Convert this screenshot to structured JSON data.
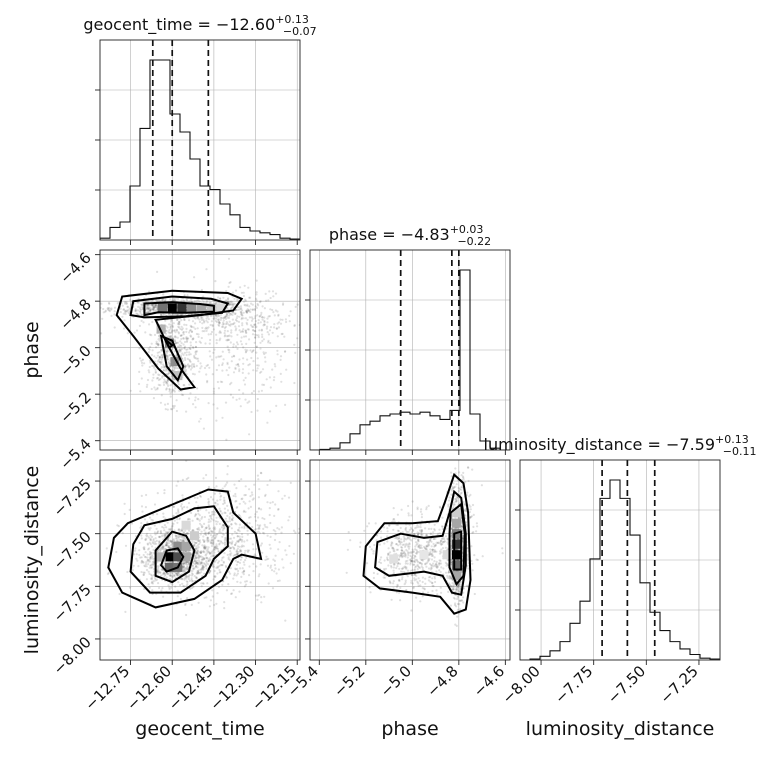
{
  "chart_data": {
    "type": "corner",
    "parameters": [
      {
        "name": "geocent_time",
        "title_text": "geocent_time = −12.60",
        "err_plus": "+0.13",
        "err_minus": "−0.07",
        "range": [
          -12.86,
          -12.14
        ],
        "ticks": [
          -12.75,
          -12.6,
          -12.45,
          -12.3,
          -12.15
        ],
        "tick_labels": [
          "−12.75",
          "−12.60",
          "−12.45",
          "−12.30",
          "−12.15"
        ],
        "quantiles": [
          -12.67,
          -12.6,
          -12.47
        ],
        "hist_edges_start": -12.86,
        "hist_bin_width": 0.036,
        "hist_values": [
          0.01,
          0.07,
          0.1,
          0.3,
          0.62,
          1.0,
          1.0,
          0.7,
          0.6,
          0.45,
          0.3,
          0.28,
          0.2,
          0.14,
          0.07,
          0.05,
          0.04,
          0.03,
          0.01,
          0.005
        ]
      },
      {
        "name": "phase",
        "title_text": "phase = −4.83",
        "err_plus": "+0.03",
        "err_minus": "−0.22",
        "range": [
          -5.44,
          -4.58
        ],
        "ticks": [
          -5.4,
          -5.2,
          -5.0,
          -4.8,
          -4.6
        ],
        "tick_labels": [
          "−5.4",
          "−5.2",
          "−5.0",
          "−4.8",
          "−4.6"
        ],
        "quantiles": [
          -5.05,
          -4.83,
          -4.8
        ],
        "hist_edges_start": -5.44,
        "hist_bin_width": 0.043,
        "hist_values": [
          0.0,
          0.003,
          0.01,
          0.04,
          0.09,
          0.14,
          0.16,
          0.19,
          0.2,
          0.21,
          0.2,
          0.21,
          0.19,
          0.17,
          0.22,
          1.0,
          0.2,
          0.05,
          0.01,
          0.0
        ]
      },
      {
        "name": "luminosity_distance",
        "title_text": "luminosity_distance = −7.59",
        "err_plus": "+0.13",
        "err_minus": "−0.11",
        "range": [
          -8.1,
          -7.15
        ],
        "ticks": [
          -8.0,
          -7.75,
          -7.5,
          -7.25
        ],
        "tick_labels": [
          "−8.00",
          "−7.75",
          "−7.50",
          "−7.25"
        ],
        "quantiles": [
          -7.71,
          -7.59,
          -7.46
        ],
        "hist_edges_start": -8.1,
        "hist_bin_width": 0.0475,
        "hist_values": [
          0.0,
          0.005,
          0.02,
          0.05,
          0.1,
          0.2,
          0.32,
          0.55,
          0.88,
          0.98,
          0.88,
          0.68,
          0.42,
          0.26,
          0.16,
          0.1,
          0.06,
          0.03,
          0.01,
          0.005
        ]
      }
    ],
    "pairs": [
      {
        "x_param": "geocent_time",
        "y_param": "phase",
        "blobs": [
          {
            "cx": -12.58,
            "cy": -4.83,
            "sx": 0.12,
            "sy": 0.018,
            "weight": 700
          },
          {
            "cx": -12.46,
            "cy": -4.86,
            "sx": 0.14,
            "sy": 0.045,
            "weight": 450
          },
          {
            "cx": -12.6,
            "cy": -5.05,
            "sx": 0.045,
            "sy": 0.09,
            "weight": 550
          },
          {
            "cx": -12.35,
            "cy": -4.99,
            "sx": 0.09,
            "sy": 0.15,
            "weight": 300
          }
        ],
        "density_cells": [
          {
            "x": -12.6,
            "y": -4.83,
            "level": 1.0
          },
          {
            "x": -12.565,
            "y": -4.83,
            "level": 0.8
          },
          {
            "x": -12.635,
            "y": -4.83,
            "level": 0.55
          },
          {
            "x": -12.53,
            "y": -4.83,
            "level": 0.45
          },
          {
            "x": -12.495,
            "y": -4.83,
            "level": 0.35
          },
          {
            "x": -12.46,
            "y": -4.83,
            "level": 0.25
          },
          {
            "x": -12.425,
            "y": -4.83,
            "level": 0.15
          },
          {
            "x": -12.61,
            "y": -4.98,
            "level": 0.5
          },
          {
            "x": -12.59,
            "y": -5.06,
            "level": 0.45
          },
          {
            "x": -12.58,
            "y": -5.12,
            "level": 0.25
          },
          {
            "x": -12.64,
            "y": -4.92,
            "level": 0.3
          }
        ],
        "contours": [
          [
            [
              -12.7,
              -4.86
            ],
            [
              -12.7,
              -4.81
            ],
            [
              -12.6,
              -4.805
            ],
            [
              -12.5,
              -4.812
            ],
            [
              -12.45,
              -4.82
            ],
            [
              -12.45,
              -4.845
            ],
            [
              -12.55,
              -4.85
            ],
            [
              -12.65,
              -4.848
            ],
            [
              -12.7,
              -4.86
            ]
          ],
          [
            [
              -12.75,
              -4.86
            ],
            [
              -12.74,
              -4.8
            ],
            [
              -12.6,
              -4.78
            ],
            [
              -12.46,
              -4.79
            ],
            [
              -12.4,
              -4.81
            ],
            [
              -12.42,
              -4.85
            ],
            [
              -12.55,
              -4.865
            ],
            [
              -12.7,
              -4.87
            ],
            [
              -12.75,
              -4.86
            ]
          ],
          [
            [
              -12.8,
              -4.86
            ],
            [
              -12.78,
              -4.78
            ],
            [
              -12.6,
              -4.755
            ],
            [
              -12.4,
              -4.765
            ],
            [
              -12.35,
              -4.79
            ],
            [
              -12.38,
              -4.84
            ],
            [
              -12.5,
              -4.86
            ],
            [
              -12.66,
              -4.88
            ],
            [
              -12.62,
              -4.98
            ],
            [
              -12.57,
              -5.09
            ],
            [
              -12.52,
              -5.17
            ],
            [
              -12.57,
              -5.18
            ],
            [
              -12.65,
              -5.09
            ],
            [
              -12.74,
              -4.95
            ],
            [
              -12.8,
              -4.86
            ]
          ],
          [
            [
              -12.64,
              -4.95
            ],
            [
              -12.62,
              -5.08
            ],
            [
              -12.58,
              -5.14
            ],
            [
              -12.56,
              -5.08
            ],
            [
              -12.6,
              -4.97
            ],
            [
              -12.64,
              -4.95
            ]
          ],
          [
            [
              -12.625,
              -4.965
            ],
            [
              -12.61,
              -5.0
            ],
            [
              -12.6,
              -4.99
            ],
            [
              -12.625,
              -4.965
            ]
          ]
        ]
      },
      {
        "x_param": "geocent_time",
        "y_param": "luminosity_distance",
        "blobs": [
          {
            "cx": -12.59,
            "cy": -7.62,
            "sx": 0.06,
            "sy": 0.07,
            "weight": 800
          },
          {
            "cx": -12.5,
            "cy": -7.55,
            "sx": 0.12,
            "sy": 0.12,
            "weight": 700
          },
          {
            "cx": -12.35,
            "cy": -7.5,
            "sx": 0.1,
            "sy": 0.13,
            "weight": 300
          }
        ],
        "density_cells": [
          {
            "x": -12.61,
            "y": -7.61,
            "level": 1.0
          },
          {
            "x": -12.58,
            "y": -7.61,
            "level": 0.7
          },
          {
            "x": -12.61,
            "y": -7.66,
            "level": 0.6
          },
          {
            "x": -12.58,
            "y": -7.66,
            "level": 0.55
          },
          {
            "x": -12.58,
            "y": -7.56,
            "level": 0.45
          },
          {
            "x": -12.55,
            "y": -7.56,
            "level": 0.35
          },
          {
            "x": -12.55,
            "y": -7.61,
            "level": 0.35
          },
          {
            "x": -12.52,
            "y": -7.51,
            "level": 0.2
          },
          {
            "x": -12.64,
            "y": -7.61,
            "level": 0.3
          },
          {
            "x": -12.55,
            "y": -7.46,
            "level": 0.15
          }
        ],
        "contours": [
          [
            [
              -12.62,
              -7.58
            ],
            [
              -12.64,
              -7.65
            ],
            [
              -12.62,
              -7.68
            ],
            [
              -12.58,
              -7.66
            ],
            [
              -12.56,
              -7.61
            ],
            [
              -12.58,
              -7.57
            ],
            [
              -12.62,
              -7.58
            ]
          ],
          [
            [
              -12.66,
              -7.58
            ],
            [
              -12.66,
              -7.7
            ],
            [
              -12.6,
              -7.73
            ],
            [
              -12.54,
              -7.68
            ],
            [
              -12.52,
              -7.58
            ],
            [
              -12.55,
              -7.51
            ],
            [
              -12.6,
              -7.49
            ],
            [
              -12.66,
              -7.58
            ]
          ],
          [
            [
              -12.74,
              -7.55
            ],
            [
              -12.75,
              -7.68
            ],
            [
              -12.68,
              -7.78
            ],
            [
              -12.57,
              -7.78
            ],
            [
              -12.48,
              -7.7
            ],
            [
              -12.45,
              -7.62
            ],
            [
              -12.4,
              -7.56
            ],
            [
              -12.4,
              -7.47
            ],
            [
              -12.45,
              -7.37
            ],
            [
              -12.52,
              -7.38
            ],
            [
              -12.6,
              -7.43
            ],
            [
              -12.7,
              -7.46
            ],
            [
              -12.74,
              -7.55
            ]
          ],
          [
            [
              -12.81,
              -7.52
            ],
            [
              -12.83,
              -7.66
            ],
            [
              -12.78,
              -7.78
            ],
            [
              -12.66,
              -7.85
            ],
            [
              -12.52,
              -7.81
            ],
            [
              -12.42,
              -7.72
            ],
            [
              -12.38,
              -7.62
            ],
            [
              -12.35,
              -7.6
            ],
            [
              -12.28,
              -7.62
            ],
            [
              -12.3,
              -7.5
            ],
            [
              -12.38,
              -7.4
            ],
            [
              -12.4,
              -7.3
            ],
            [
              -12.47,
              -7.29
            ],
            [
              -12.56,
              -7.34
            ],
            [
              -12.67,
              -7.4
            ],
            [
              -12.76,
              -7.45
            ],
            [
              -12.81,
              -7.52
            ]
          ]
        ]
      },
      {
        "x_param": "phase",
        "y_param": "luminosity_distance",
        "blobs": [
          {
            "cx": -4.81,
            "cy": -7.6,
            "sx": 0.015,
            "sy": 0.1,
            "weight": 800
          },
          {
            "cx": -4.97,
            "cy": -7.6,
            "sx": 0.1,
            "sy": 0.09,
            "weight": 700
          },
          {
            "cx": -4.8,
            "cy": -7.45,
            "sx": 0.03,
            "sy": 0.15,
            "weight": 300
          }
        ],
        "density_cells": [
          {
            "x": -4.81,
            "y": -7.6,
            "level": 1.0
          },
          {
            "x": -4.81,
            "y": -7.55,
            "level": 0.8
          },
          {
            "x": -4.81,
            "y": -7.65,
            "level": 0.6
          },
          {
            "x": -4.81,
            "y": -7.5,
            "level": 0.5
          },
          {
            "x": -4.81,
            "y": -7.45,
            "level": 0.35
          },
          {
            "x": -4.81,
            "y": -7.7,
            "level": 0.35
          },
          {
            "x": -4.81,
            "y": -7.4,
            "level": 0.2
          },
          {
            "x": -4.85,
            "y": -7.6,
            "level": 0.15
          },
          {
            "x": -5.08,
            "y": -7.62,
            "level": 0.12
          },
          {
            "x": -4.95,
            "y": -7.6,
            "level": 0.1
          }
        ],
        "contours": [
          [
            [
              -4.82,
              -7.5
            ],
            [
              -4.79,
              -7.49
            ],
            [
              -4.79,
              -7.67
            ],
            [
              -4.82,
              -7.67
            ],
            [
              -4.82,
              -7.5
            ]
          ],
          [
            [
              -4.835,
              -7.4
            ],
            [
              -4.79,
              -7.36
            ],
            [
              -4.775,
              -7.5
            ],
            [
              -4.78,
              -7.7
            ],
            [
              -4.81,
              -7.74
            ],
            [
              -4.84,
              -7.66
            ],
            [
              -4.84,
              -7.5
            ],
            [
              -4.835,
              -7.4
            ]
          ],
          [
            [
              -5.15,
              -7.54
            ],
            [
              -5.16,
              -7.66
            ],
            [
              -5.1,
              -7.7
            ],
            [
              -4.95,
              -7.68
            ],
            [
              -4.87,
              -7.7
            ],
            [
              -4.83,
              -7.78
            ],
            [
              -4.79,
              -7.79
            ],
            [
              -4.77,
              -7.65
            ],
            [
              -4.77,
              -7.5
            ],
            [
              -4.79,
              -7.33
            ],
            [
              -4.82,
              -7.3
            ],
            [
              -4.84,
              -7.4
            ],
            [
              -4.87,
              -7.51
            ],
            [
              -4.95,
              -7.52
            ],
            [
              -5.05,
              -7.5
            ],
            [
              -5.15,
              -7.54
            ]
          ],
          [
            [
              -5.2,
              -7.56
            ],
            [
              -5.21,
              -7.7
            ],
            [
              -5.14,
              -7.76
            ],
            [
              -5.0,
              -7.78
            ],
            [
              -4.88,
              -7.8
            ],
            [
              -4.82,
              -7.88
            ],
            [
              -4.77,
              -7.86
            ],
            [
              -4.75,
              -7.72
            ],
            [
              -4.76,
              -7.4
            ],
            [
              -4.78,
              -7.26
            ],
            [
              -4.82,
              -7.22
            ],
            [
              -4.86,
              -7.35
            ],
            [
              -4.89,
              -7.44
            ],
            [
              -5.0,
              -7.45
            ],
            [
              -5.12,
              -7.45
            ],
            [
              -5.2,
              -7.56
            ]
          ]
        ]
      }
    ]
  }
}
